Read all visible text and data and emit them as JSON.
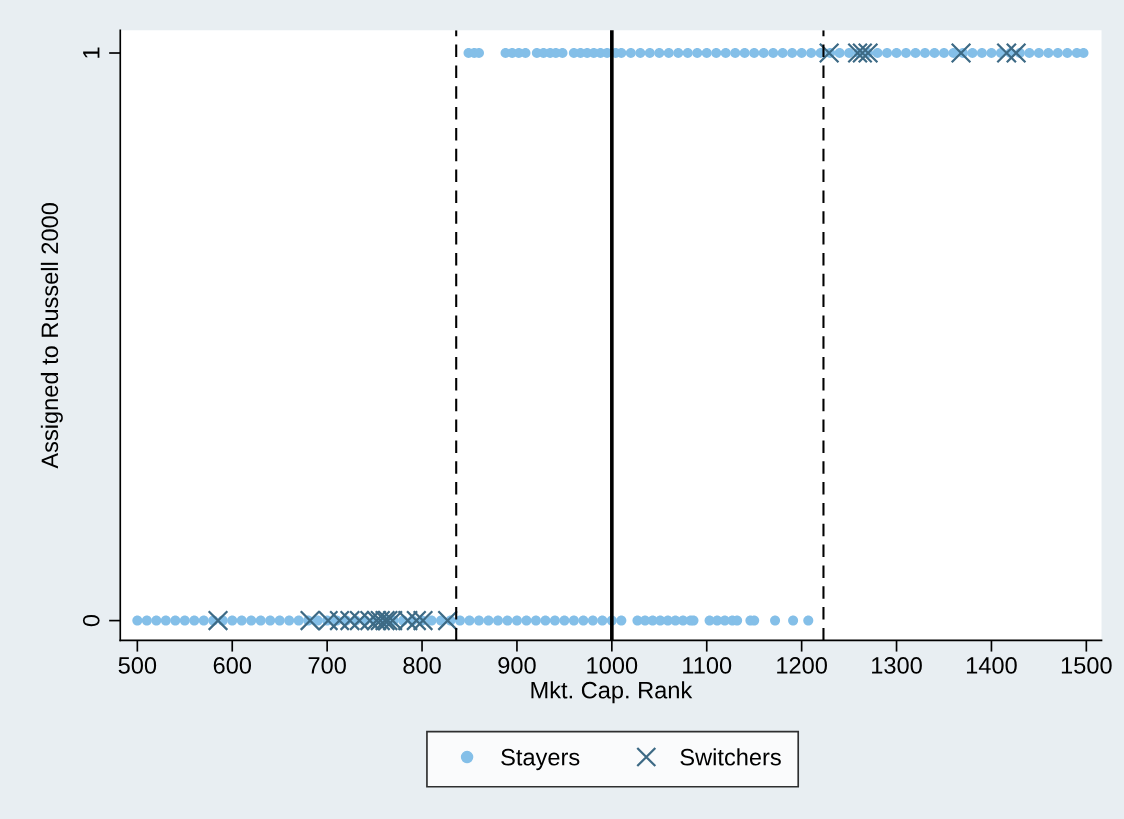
{
  "chart_data": {
    "type": "scatter",
    "xlabel": "Mkt. Cap. Rank",
    "ylabel": "Assigned to Russell 2000",
    "xlim": [
      482,
      1516
    ],
    "ylim": [
      -0.035,
      1.04
    ],
    "xticks": [
      500,
      600,
      700,
      800,
      900,
      1000,
      1100,
      1200,
      1300,
      1400,
      1500
    ],
    "yticks": [
      0,
      1
    ],
    "grid": false,
    "legend": "bottom",
    "ref_lines": [
      {
        "axis": "x",
        "value": 836,
        "line_style": "dashed",
        "color": "#000000"
      },
      {
        "axis": "x",
        "value": 1000,
        "line_style": "solid",
        "color": "#000000"
      },
      {
        "axis": "x",
        "value": 1223,
        "line_style": "dashed",
        "color": "#000000"
      }
    ],
    "series": [
      {
        "name": "Stayers",
        "color": "#84bfe8",
        "marker": "circle",
        "x": [
          500,
          510,
          520,
          530,
          540,
          550,
          560,
          570,
          580,
          590,
          600,
          610,
          620,
          630,
          640,
          650,
          660,
          670,
          680,
          690,
          700,
          710,
          720,
          730,
          740,
          750,
          760,
          770,
          780,
          790,
          800,
          810,
          820,
          830,
          840,
          850,
          860,
          870,
          880,
          890,
          900,
          910,
          920,
          930,
          940,
          950,
          960,
          970,
          980,
          990,
          1000,
          1010,
          1027,
          1035,
          1043,
          1051,
          1059,
          1067,
          1075,
          1083,
          1086,
          1103,
          1111,
          1119,
          1127,
          1132,
          1146,
          1150,
          1172,
          1191,
          1207,
          849,
          855,
          860,
          888,
          895,
          902,
          909,
          921,
          928,
          935,
          941,
          948,
          960,
          967,
          974,
          981,
          988,
          995,
          1004,
          1010,
          1020,
          1030,
          1040,
          1050,
          1060,
          1070,
          1080,
          1090,
          1100,
          1110,
          1120,
          1130,
          1140,
          1150,
          1160,
          1170,
          1180,
          1190,
          1200,
          1210,
          1220,
          1230,
          1240,
          1250,
          1260,
          1270,
          1280,
          1290,
          1300,
          1310,
          1320,
          1330,
          1340,
          1350,
          1360,
          1370,
          1380,
          1390,
          1400,
          1410,
          1420,
          1430,
          1440,
          1450,
          1460,
          1470,
          1480,
          1490,
          1497
        ],
        "values": [
          0,
          0,
          0,
          0,
          0,
          0,
          0,
          0,
          0,
          0,
          0,
          0,
          0,
          0,
          0,
          0,
          0,
          0,
          0,
          0,
          0,
          0,
          0,
          0,
          0,
          0,
          0,
          0,
          0,
          0,
          0,
          0,
          0,
          0,
          0,
          0,
          0,
          0,
          0,
          0,
          0,
          0,
          0,
          0,
          0,
          0,
          0,
          0,
          0,
          0,
          0,
          0,
          0,
          0,
          0,
          0,
          0,
          0,
          0,
          0,
          0,
          0,
          0,
          0,
          0,
          0,
          0,
          0,
          0,
          0,
          0,
          1,
          1,
          1,
          1,
          1,
          1,
          1,
          1,
          1,
          1,
          1,
          1,
          1,
          1,
          1,
          1,
          1,
          1,
          1,
          1,
          1,
          1,
          1,
          1,
          1,
          1,
          1,
          1,
          1,
          1,
          1,
          1,
          1,
          1,
          1,
          1,
          1,
          1,
          1,
          1,
          1,
          1,
          1,
          1,
          1,
          1,
          1,
          1,
          1,
          1,
          1,
          1,
          1,
          1,
          1,
          1,
          1,
          1,
          1,
          1,
          1,
          1,
          1,
          1,
          1,
          1,
          1,
          1,
          1
        ]
      },
      {
        "name": "Switchers",
        "color": "#3d6a85",
        "marker": "cross",
        "x": [
          585,
          682,
          701,
          713,
          724,
          734,
          745,
          752,
          756,
          761,
          764,
          769,
          785,
          794,
          801,
          827,
          1229,
          1259,
          1264,
          1270,
          1368,
          1416,
          1426
        ],
        "values": [
          0,
          0,
          0,
          0,
          0,
          0,
          0,
          0,
          0,
          0,
          0,
          0,
          0,
          0,
          0,
          0,
          1,
          1,
          1,
          1,
          1,
          1,
          1
        ]
      }
    ]
  }
}
